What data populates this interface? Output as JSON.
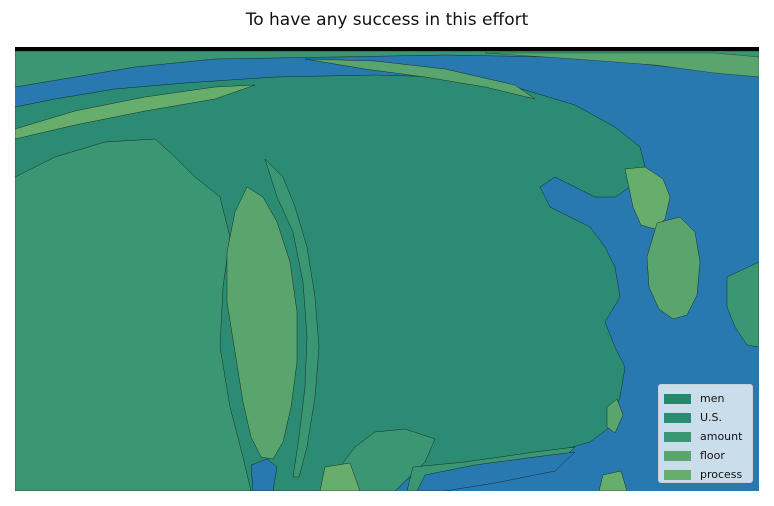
{
  "title": "To have any success in this effort",
  "colors": {
    "sea": "#2779b0",
    "men": "#208a6b",
    "us": "#2b8c73",
    "amount": "#3b9673",
    "floor": "#5aa56e",
    "process": "#67ae6c"
  },
  "legend": {
    "items": [
      {
        "label": "men",
        "color": "#208a6b"
      },
      {
        "label": "U.S.",
        "color": "#2b8c73"
      },
      {
        "label": "amount",
        "color": "#3b9673"
      },
      {
        "label": "floor",
        "color": "#5aa56e"
      },
      {
        "label": "process",
        "color": "#67ae6c"
      }
    ],
    "placement": "lower-right"
  }
}
